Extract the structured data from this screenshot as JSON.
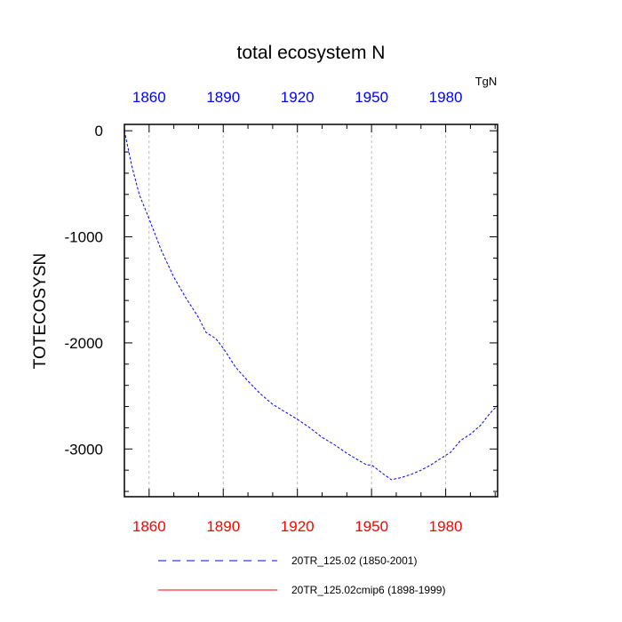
{
  "chart_data": {
    "type": "line",
    "title": "total ecosystem N",
    "units": "TgN",
    "ylabel": "TOTECOSYSN",
    "xlabel": "",
    "xlim": [
      1850,
      2001
    ],
    "ylim": [
      -3450,
      60
    ],
    "x_ticks": [
      1860,
      1890,
      1920,
      1950,
      1980
    ],
    "x_tick_labels": [
      "1860",
      "1890",
      "1920",
      "1950",
      "1980"
    ],
    "y_ticks": [
      0,
      -1000,
      -2000,
      -3000
    ],
    "y_tick_labels": [
      "0",
      "-1000",
      "-2000",
      "-3000"
    ],
    "grid": "vertical dashed at x ticks",
    "colors": {
      "top_axis": "#0000ff",
      "bottom_axis": "#ff0000",
      "series_1": "#0000ff",
      "series_2": "#ff0000"
    },
    "series": [
      {
        "name": "20TR_125.02 (1850-2001)",
        "style": "dashed",
        "x": [
          1850,
          1853,
          1856,
          1860,
          1865,
          1870,
          1875,
          1880,
          1883,
          1887,
          1890,
          1895,
          1900,
          1905,
          1910,
          1915,
          1920,
          1925,
          1930,
          1935,
          1940,
          1945,
          1948,
          1950,
          1955,
          1958,
          1962,
          1966,
          1970,
          1974,
          1978,
          1982,
          1986,
          1990,
          1994,
          1998,
          2001
        ],
        "values": [
          0,
          -330,
          -600,
          -830,
          -1130,
          -1380,
          -1580,
          -1760,
          -1900,
          -1960,
          -2050,
          -2230,
          -2360,
          -2480,
          -2580,
          -2650,
          -2720,
          -2800,
          -2890,
          -2960,
          -3040,
          -3110,
          -3150,
          -3150,
          -3240,
          -3290,
          -3270,
          -3240,
          -3200,
          -3150,
          -3090,
          -3030,
          -2920,
          -2860,
          -2780,
          -2660,
          -2590
        ]
      },
      {
        "name": "20TR_125.02cmip6 (1898-1999)",
        "style": "solid",
        "x": [],
        "values": []
      }
    ],
    "legend": "bottom"
  }
}
